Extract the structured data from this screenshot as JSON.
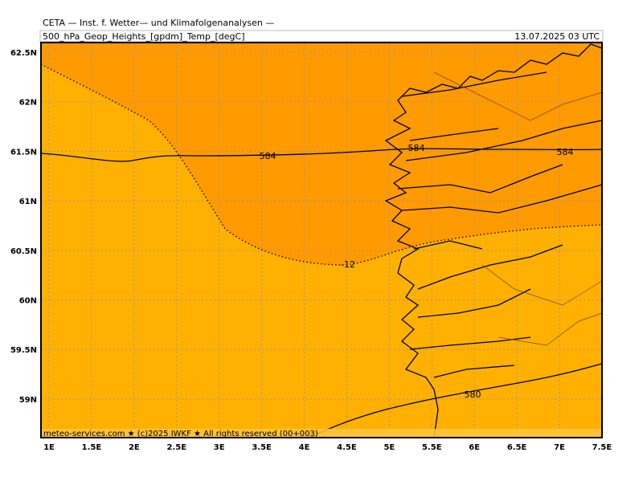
{
  "header": {
    "title": "CETA — Inst. f. Wetter— und Klimafolgenanalysen —",
    "subtitle": "500_hPa_Geop_Heights_[gpdm]_Temp_[degC]",
    "timestamp": "13.07.2025  03 UTC"
  },
  "map": {
    "lat_labels": [
      "62.5N",
      "62N",
      "61.5N",
      "61N",
      "60.5N",
      "60N",
      "59.5N",
      "59N"
    ],
    "lon_labels": [
      "1E",
      "1.5E",
      "2E",
      "2.5E",
      "3E",
      "3.5E",
      "4E",
      "4.5E",
      "5E",
      "5.5E",
      "6E",
      "6.5E",
      "7E",
      "7.5E"
    ],
    "contour_labels": [
      "584",
      "584",
      "584",
      "-12",
      "580"
    ],
    "footer": "meteo-services.com ★ (c)2025 IWKF ★ All rights reserved (00+003)"
  }
}
